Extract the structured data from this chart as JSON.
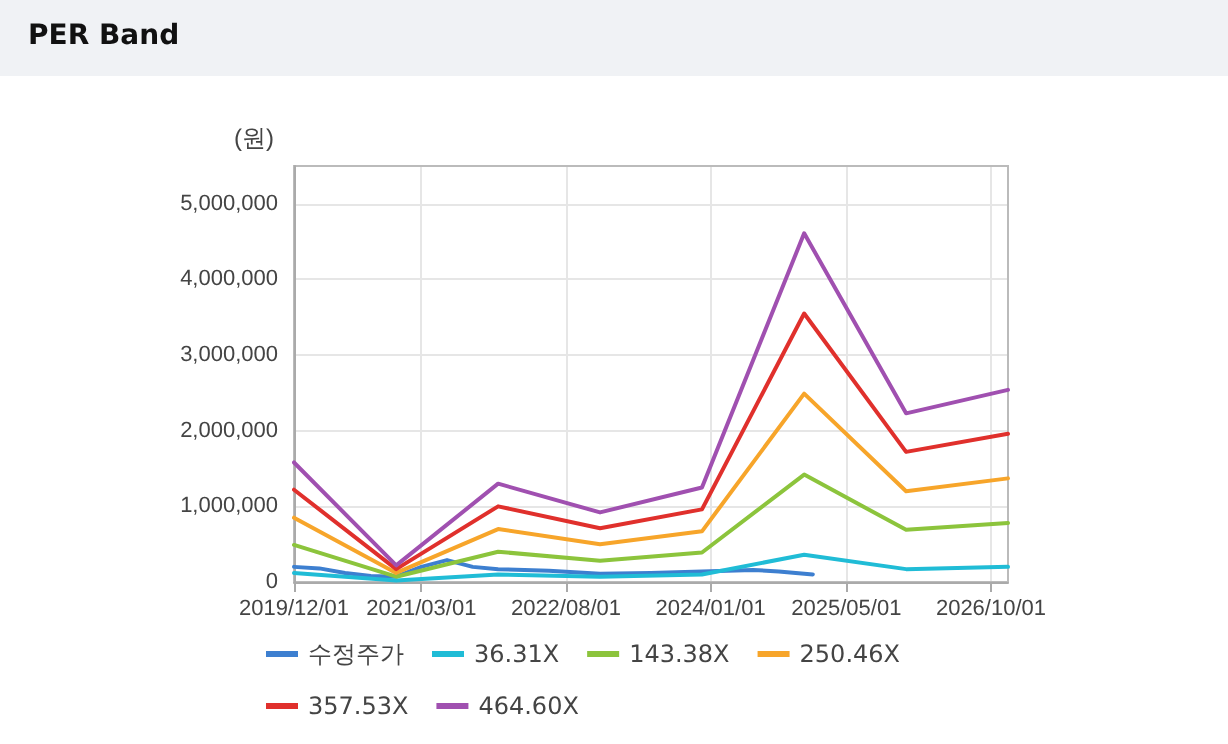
{
  "chart_data": {
    "type": "line",
    "title": "PER Band",
    "ylabel": "(원)",
    "xlim": [
      "2019-12-01",
      "2026-12-01"
    ],
    "xticks": [
      {
        "value": "2019-12-01",
        "label": "2019/12/01"
      },
      {
        "value": "2021-03-01",
        "label": "2021/03/01"
      },
      {
        "value": "2022-08-01",
        "label": "2022/08/01"
      },
      {
        "value": "2024-01-01",
        "label": "2024/01/01"
      },
      {
        "value": "2025-05-01",
        "label": "2025/05/01"
      },
      {
        "value": "2026-10-01",
        "label": "2026/10/01"
      }
    ],
    "ylim": [
      0,
      5500000
    ],
    "yticks": [
      {
        "value": 0,
        "label": "0"
      },
      {
        "value": 1000000,
        "label": "1,000,000"
      },
      {
        "value": 2000000,
        "label": "2,000,000"
      },
      {
        "value": 3000000,
        "label": "3,000,000"
      },
      {
        "value": 4000000,
        "label": "4,000,000"
      },
      {
        "value": 5000000,
        "label": "5,000,000"
      }
    ],
    "x": [
      "2019-12-01",
      "2020-12-01",
      "2021-12-01",
      "2022-12-01",
      "2023-12-01",
      "2024-12-01",
      "2025-12-01",
      "2026-12-01"
    ],
    "series": [
      {
        "name": "수정주가",
        "color": "#3d7fd0",
        "x": [
          "2019-12-01",
          "2020-03-01",
          "2020-06-01",
          "2020-09-01",
          "2020-12-01",
          "2021-03-01",
          "2021-06-01",
          "2021-09-01",
          "2021-12-01",
          "2022-06-01",
          "2022-12-01",
          "2023-06-01",
          "2023-12-01",
          "2024-06-01",
          "2024-09-01",
          "2025-01-01"
        ],
        "values": [
          200000,
          180000,
          120000,
          80000,
          70000,
          200000,
          290000,
          200000,
          170000,
          150000,
          110000,
          120000,
          140000,
          160000,
          140000,
          100000
        ]
      },
      {
        "name": "36.31X",
        "color": "#20bcd6",
        "values": [
          120000,
          20000,
          100000,
          70000,
          100000,
          360000,
          170000,
          200000
        ]
      },
      {
        "name": "143.38X",
        "color": "#8cc43c",
        "values": [
          490000,
          70000,
          400000,
          280000,
          390000,
          1420000,
          690000,
          780000
        ]
      },
      {
        "name": "250.46X",
        "color": "#f7a52a",
        "values": [
          850000,
          120000,
          700000,
          500000,
          670000,
          2490000,
          1200000,
          1370000
        ]
      },
      {
        "name": "357.53X",
        "color": "#e0302c",
        "values": [
          1220000,
          170000,
          1000000,
          710000,
          960000,
          3550000,
          1720000,
          1960000
        ]
      },
      {
        "name": "464.60X",
        "color": "#a050b0",
        "values": [
          1580000,
          220000,
          1300000,
          920000,
          1250000,
          4610000,
          2230000,
          2540000
        ]
      }
    ],
    "grid": true,
    "legend": "bottom",
    "marker": "none",
    "line_style": "solid"
  }
}
